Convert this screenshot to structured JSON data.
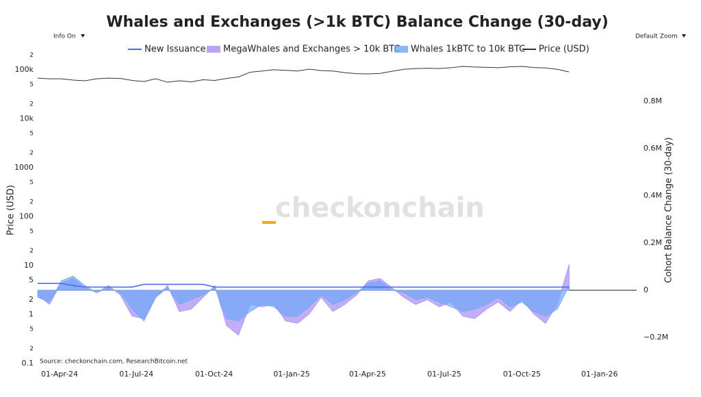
{
  "chart_data": {
    "type": "area",
    "title": "Whales and Exchanges (>1k BTC) Balance Change (30-day)",
    "controls": {
      "info": "Info On",
      "zoom": "Default Zoom"
    },
    "watermark": "checkonchain",
    "source": "Source: checkonchain.com, ResearchBitcoin.net",
    "ylabel": "Price (USD)",
    "y2label": "Cohort Balance Change (30-day)",
    "log_y": true,
    "zero_line": true,
    "legend": "top",
    "x": [
      "2024-03-06",
      "2024-03-20",
      "2024-04-03",
      "2024-04-17",
      "2024-05-01",
      "2024-05-15",
      "2024-05-29",
      "2024-06-12",
      "2024-06-26",
      "2024-07-10",
      "2024-07-24",
      "2024-08-07",
      "2024-08-21",
      "2024-09-04",
      "2024-09-18",
      "2024-10-02",
      "2024-10-16",
      "2024-10-30",
      "2024-11-13",
      "2024-11-27",
      "2024-12-11",
      "2024-12-25",
      "2025-01-08",
      "2025-01-22",
      "2025-02-05",
      "2025-02-19",
      "2025-03-05",
      "2025-03-19",
      "2025-04-02",
      "2025-04-16",
      "2025-04-30",
      "2025-05-14",
      "2025-05-28",
      "2025-06-11",
      "2025-06-25",
      "2025-07-09",
      "2025-07-23",
      "2025-08-06",
      "2025-08-20",
      "2025-09-03",
      "2025-09-17",
      "2025-10-01",
      "2025-10-15",
      "2025-10-29",
      "2025-11-12",
      "2025-11-26"
    ],
    "xlim": [
      "2024-03-06",
      "2026-02-14"
    ],
    "xticks": [
      {
        "value": "2024-04-01",
        "label": "01-Apr-24"
      },
      {
        "value": "2024-07-01",
        "label": "01-Jul-24"
      },
      {
        "value": "2024-10-01",
        "label": "01-Oct-24"
      },
      {
        "value": "2025-01-01",
        "label": "01-Jan-25"
      },
      {
        "value": "2025-04-01",
        "label": "01-Apr-25"
      },
      {
        "value": "2025-07-01",
        "label": "01-Jul-25"
      },
      {
        "value": "2025-10-01",
        "label": "01-Oct-25"
      },
      {
        "value": "2026-01-01",
        "label": "01-Jan-26"
      }
    ],
    "ylim": [
      0.1,
      240000
    ],
    "yticks": [
      0.1,
      {
        "value": 0.2,
        "label": "2"
      },
      {
        "value": 0.5,
        "label": "5"
      },
      1,
      2,
      5,
      10,
      {
        "value": 20,
        "label": "2"
      },
      {
        "value": 50,
        "label": "5"
      },
      100,
      {
        "value": 200,
        "label": "2"
      },
      {
        "value": 500,
        "label": "5"
      },
      1000,
      {
        "value": 2000,
        "label": "2"
      },
      {
        "value": 5000,
        "label": "5"
      },
      {
        "value": 10000,
        "label": "10k"
      },
      {
        "value": 20000,
        "label": "2"
      },
      {
        "value": 50000,
        "label": "5"
      },
      {
        "value": 100000,
        "label": "100k"
      },
      {
        "value": 200000,
        "label": "2"
      }
    ],
    "y2lim": [
      -310000,
      1012000
    ],
    "y2ticks": [
      {
        "value": -200000,
        "label": "−0.2M"
      },
      0,
      {
        "value": 200000,
        "label": "0.2M"
      },
      {
        "value": 400000,
        "label": "0.4M"
      },
      {
        "value": 600000,
        "label": "0.6M"
      },
      {
        "value": 800000,
        "label": "0.8M"
      }
    ],
    "series": [
      {
        "name": "New Issuance",
        "color": "#4a6cf0",
        "kind": "line",
        "axis": "y2",
        "values": [
          29000,
          29000,
          29000,
          20000,
          14000,
          13500,
          13500,
          13500,
          13500,
          25000,
          25000,
          25000,
          25000,
          25000,
          25000,
          13500,
          13500,
          13500,
          13500,
          13500,
          13500,
          13500,
          13500,
          13500,
          13500,
          13500,
          13500,
          13500,
          13500,
          13500,
          13500,
          13500,
          13500,
          13500,
          13500,
          13500,
          13500,
          13500,
          13500,
          13500,
          13500,
          13500,
          13500,
          13500,
          13500,
          13500
        ]
      },
      {
        "name": "MegaWhales and Exchanges > 10k BTC",
        "color": "#a68cf3",
        "kind": "area",
        "axis": "y2",
        "values": [
          -20000,
          -60000,
          30000,
          50000,
          10000,
          -10000,
          20000,
          -20000,
          -110000,
          -120000,
          -30000,
          20000,
          -90000,
          -80000,
          -30000,
          20000,
          -150000,
          -190000,
          -60000,
          -70000,
          -60000,
          -130000,
          -140000,
          -100000,
          -30000,
          -90000,
          -60000,
          -20000,
          40000,
          50000,
          10000,
          -30000,
          -60000,
          -40000,
          -70000,
          -50000,
          -110000,
          -120000,
          -80000,
          -50000,
          -90000,
          -40000,
          -100000,
          -140000,
          -60000,
          110000
        ]
      },
      {
        "name": "Whales 1kBTC to 10k BTC",
        "color": "#6fa6f6",
        "kind": "area",
        "axis": "y2",
        "values": [
          -30000,
          -50000,
          40000,
          60000,
          20000,
          -10000,
          10000,
          -10000,
          -80000,
          -130000,
          -30000,
          10000,
          -60000,
          -40000,
          -20000,
          10000,
          -120000,
          -130000,
          -90000,
          -60000,
          -70000,
          -110000,
          -110000,
          -70000,
          -20000,
          -60000,
          -40000,
          -10000,
          30000,
          40000,
          0,
          -10000,
          -40000,
          -30000,
          -50000,
          -70000,
          -90000,
          -80000,
          -60000,
          -30000,
          -70000,
          -50000,
          -90000,
          -110000,
          -80000,
          20000
        ]
      },
      {
        "name": "Price (USD)",
        "color": "#333333",
        "kind": "line",
        "axis": "y",
        "values": [
          68000,
          66000,
          66000,
          62000,
          60000,
          66000,
          68000,
          67000,
          61000,
          58000,
          66000,
          56000,
          60000,
          57000,
          63000,
          61000,
          67000,
          72000,
          90000,
          95000,
          101000,
          98000,
          95000,
          104000,
          97000,
          95000,
          88000,
          84000,
          83000,
          85000,
          94000,
          103000,
          107000,
          108000,
          107000,
          111000,
          118000,
          115000,
          113000,
          111000,
          116000,
          118000,
          112000,
          110000,
          103000,
          91000
        ]
      }
    ]
  }
}
